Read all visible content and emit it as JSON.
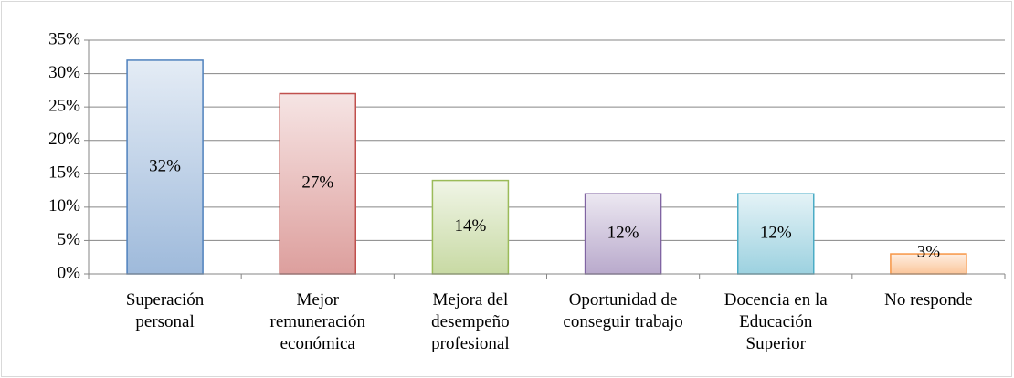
{
  "chart_data": {
    "type": "bar",
    "categories": [
      "Superación personal",
      "Mejor remuneración económica",
      "Mejora del desempeño profesional",
      "Oportunidad de conseguir trabajo",
      "Docencia en la Educación Superior",
      "No responde"
    ],
    "values": [
      32,
      27,
      14,
      12,
      12,
      3
    ],
    "value_labels": [
      "32%",
      "27%",
      "14%",
      "12%",
      "12%",
      "3%"
    ],
    "colors": [
      "#4f81bd",
      "#c0504d",
      "#9bbb59",
      "#8064a2",
      "#4bacc6",
      "#f79646"
    ],
    "ylim": [
      0,
      35
    ],
    "yticks": [
      {
        "value": 0,
        "label": "0%"
      },
      {
        "value": 5,
        "label": "5%"
      },
      {
        "value": 10,
        "label": "10%"
      },
      {
        "value": 15,
        "label": "15%"
      },
      {
        "value": 20,
        "label": "20%"
      },
      {
        "value": 25,
        "label": "25%"
      },
      {
        "value": 30,
        "label": "30%"
      },
      {
        "value": 35,
        "label": "35%"
      }
    ],
    "grid": true
  }
}
